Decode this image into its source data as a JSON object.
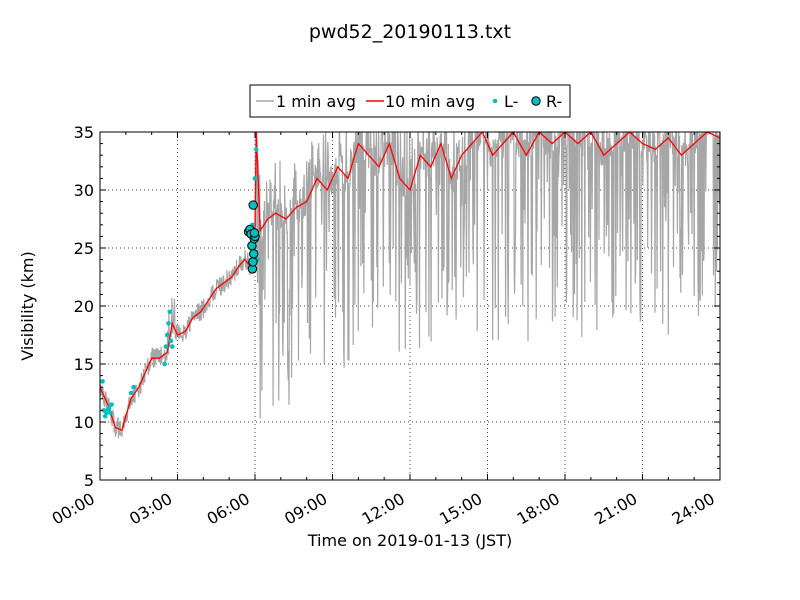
{
  "chart_data": {
    "type": "line",
    "title": "pwd52_20190113.txt",
    "xlabel": "Time on 2019-01-13 (JST)",
    "ylabel": "Visibility (km)",
    "xlim_hours": [
      0,
      24
    ],
    "ylim": [
      5,
      35
    ],
    "x_ticks": [
      "00:00",
      "03:00",
      "06:00",
      "09:00",
      "12:00",
      "15:00",
      "18:00",
      "21:00",
      "24:00"
    ],
    "y_ticks": [
      5,
      10,
      15,
      20,
      25,
      30,
      35
    ],
    "grid": true,
    "legend_position": "top-center",
    "legend": [
      "1 min avg",
      "10 min avg",
      "L-",
      "R-"
    ],
    "colors": {
      "one_min": "#a6a6a6",
      "ten_min": "#ff0000",
      "marker": "#00bfbf"
    },
    "series": [
      {
        "name": "10 min avg",
        "hours": [
          0.0,
          0.3,
          0.6,
          0.85,
          1.0,
          1.2,
          1.5,
          1.8,
          2.0,
          2.3,
          2.6,
          2.8,
          3.0,
          3.3,
          3.6,
          3.9,
          4.2,
          4.5,
          4.8,
          5.1,
          5.4,
          5.6,
          5.8,
          5.95,
          6.0,
          6.05,
          6.2,
          6.5,
          6.8,
          7.2,
          7.6,
          8.0,
          8.4,
          8.8,
          9.2,
          9.6,
          10.0,
          10.4,
          10.8,
          11.2,
          11.6,
          12.0,
          12.4,
          12.8,
          13.2,
          13.6,
          14.0,
          14.4,
          14.8,
          15.2,
          15.6,
          16.0,
          16.5,
          17.0,
          17.5,
          18.0,
          18.5,
          19.0,
          19.5,
          20.0,
          20.5,
          21.0,
          21.5,
          22.0,
          22.5,
          23.0,
          23.5,
          24.0
        ],
        "values": [
          13,
          11.5,
          9.5,
          9.3,
          10.5,
          12,
          13,
          14.5,
          15.5,
          15.5,
          16,
          18.5,
          17.5,
          17.8,
          19,
          19.5,
          20.5,
          21.5,
          22,
          22.5,
          23.5,
          24,
          23.5,
          24,
          27,
          35,
          26.5,
          27.5,
          28,
          27.5,
          28.5,
          29,
          31,
          30,
          32,
          31,
          34,
          33,
          32,
          34,
          31,
          30,
          33,
          32,
          34,
          31,
          33,
          34,
          35,
          33,
          34,
          35,
          33,
          35,
          34,
          35,
          34,
          35,
          33,
          34,
          35,
          34,
          33.5,
          34.5,
          33,
          34,
          35,
          34.5
        ]
      },
      {
        "name": "L-",
        "hours": [
          0.1,
          0.15,
          0.2,
          0.25,
          0.3,
          0.35,
          0.4,
          0.45,
          1.2,
          1.3,
          2.5,
          2.55,
          2.6,
          2.65,
          2.7,
          2.75,
          2.8,
          5.85,
          5.9,
          5.95,
          6.0,
          6.05,
          6.1
        ],
        "values": [
          13.5,
          11,
          10.5,
          10.8,
          11,
          11.2,
          10.8,
          11.5,
          12.5,
          13,
          15,
          16.5,
          17.5,
          18.5,
          19.5,
          17,
          16.5,
          26.5,
          27,
          28.5,
          31,
          33.5,
          24
        ]
      },
      {
        "name": "R-",
        "hours": [
          5.75,
          5.8,
          5.85,
          5.88,
          5.9,
          5.92,
          5.95,
          5.97,
          6.0,
          5.93,
          5.98
        ],
        "values": [
          26.4,
          26.6,
          26.2,
          25.2,
          23.2,
          23.8,
          24.5,
          25.8,
          26,
          28.7,
          26.3
        ]
      }
    ]
  }
}
